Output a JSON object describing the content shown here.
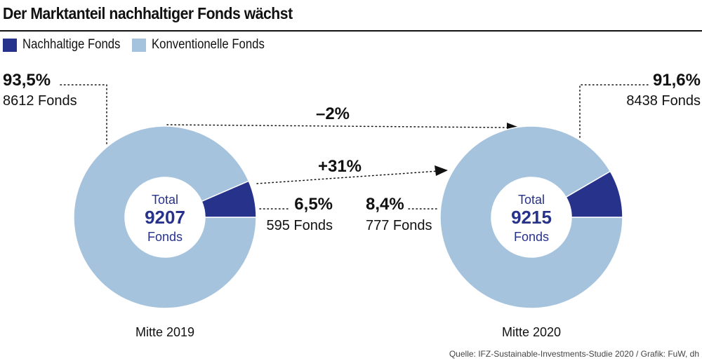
{
  "title": "Der Marktanteil nachhaltiger Fonds wächst",
  "source": "Quelle: IFZ-Sustainable-Investments-Studie 2020 / Grafik: FuW, dh",
  "colors": {
    "sustainable": "#27328a",
    "conventional": "#a6c3de",
    "text": "#111111"
  },
  "legend": [
    {
      "label": "Nachhaltige Fonds",
      "color": "#27328a"
    },
    {
      "label": "Konventionelle Fonds",
      "color": "#a6c3de"
    }
  ],
  "chart_data": [
    {
      "type": "donut",
      "period": "Mitte 2019",
      "center": {
        "top": "Total",
        "value": "9207",
        "bottom": "Fonds"
      },
      "segments": [
        {
          "name": "Nachhaltige Fonds",
          "value": 6.5,
          "percent_label": "6,5%",
          "count_label": "595 Fonds"
        },
        {
          "name": "Konventionelle Fonds",
          "value": 93.5,
          "percent_label": "93,5%",
          "count_label": "8612 Fonds"
        }
      ]
    },
    {
      "type": "donut",
      "period": "Mitte 2020",
      "center": {
        "top": "Total",
        "value": "9215",
        "bottom": "Fonds"
      },
      "segments": [
        {
          "name": "Nachhaltige Fonds",
          "value": 8.4,
          "percent_label": "8,4%",
          "count_label": "777 Fonds"
        },
        {
          "name": "Konventionelle Fonds",
          "value": 91.6,
          "percent_label": "91,6%",
          "count_label": "8438 Fonds"
        }
      ]
    }
  ],
  "changes": {
    "conventional": "–2%",
    "sustainable": "+31%"
  }
}
